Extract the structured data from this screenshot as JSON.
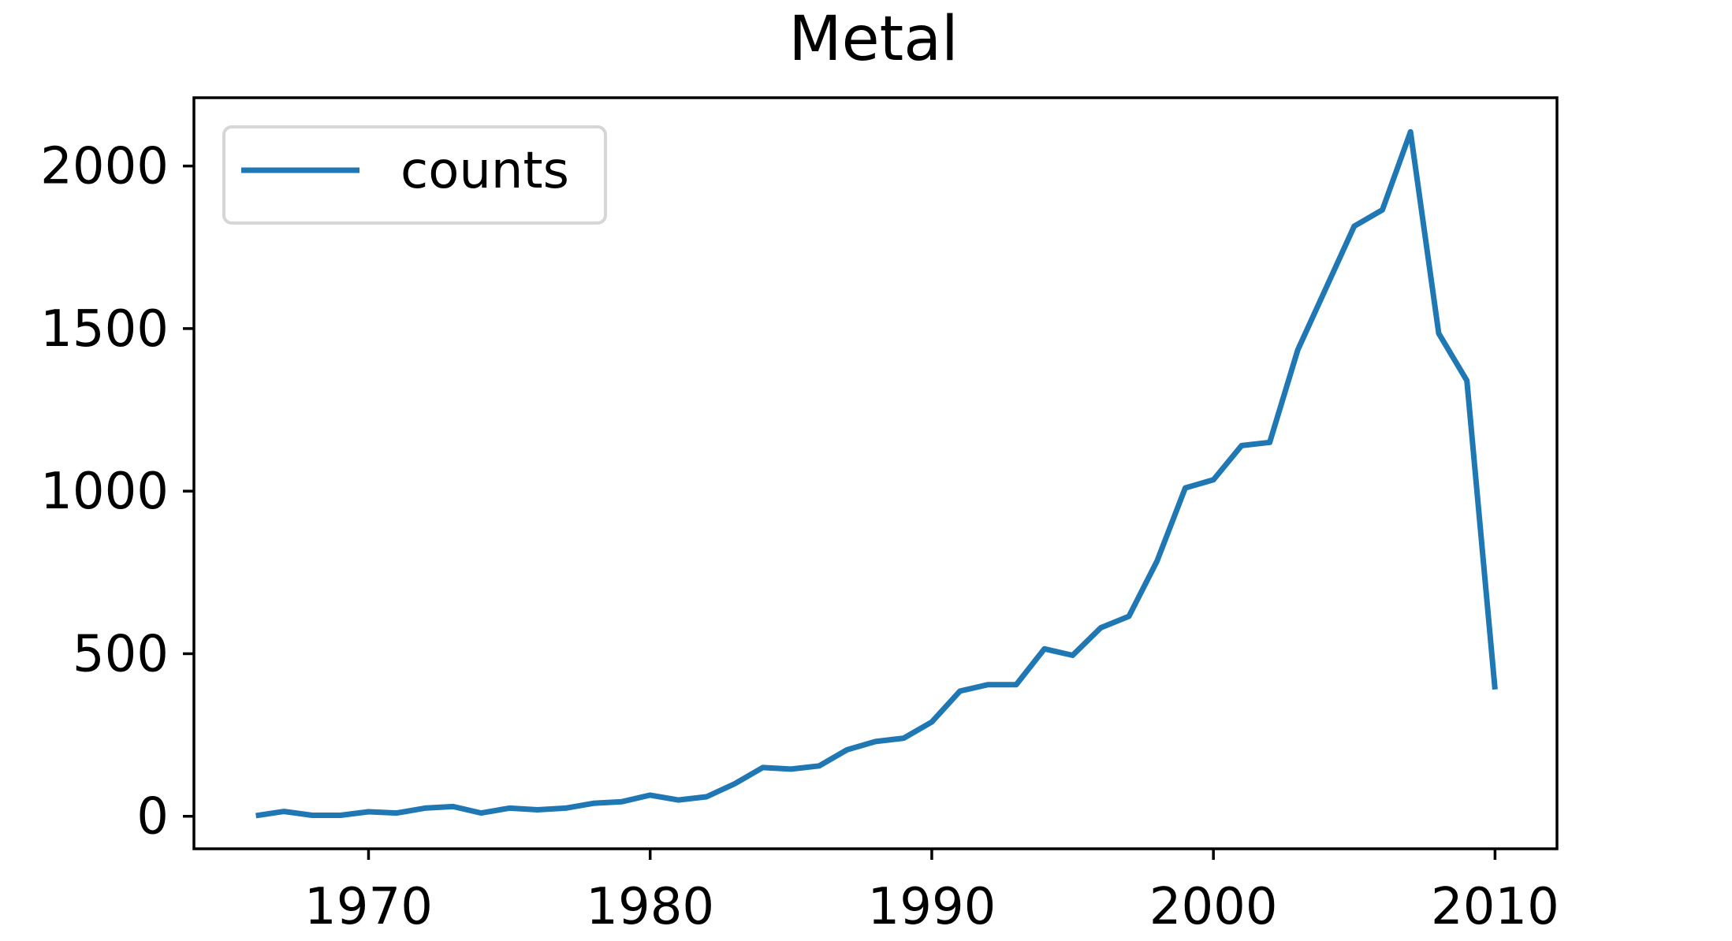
{
  "chart_data": {
    "type": "line",
    "title": "Metal",
    "xlabel": "",
    "ylabel": "",
    "xlim": [
      1963.8,
      2012.2
    ],
    "ylim": [
      -100,
      2210
    ],
    "x_ticks": [
      1970,
      1980,
      1990,
      2000,
      2010
    ],
    "y_ticks": [
      0,
      500,
      1000,
      1500,
      2000
    ],
    "grid": false,
    "legend_position": "top-left",
    "series": [
      {
        "name": "counts",
        "color": "#1f77b4",
        "x": [
          1966,
          1967,
          1968,
          1969,
          1970,
          1971,
          1972,
          1973,
          1974,
          1975,
          1976,
          1977,
          1978,
          1979,
          1980,
          1981,
          1982,
          1983,
          1984,
          1985,
          1986,
          1987,
          1988,
          1989,
          1990,
          1991,
          1992,
          1993,
          1994,
          1995,
          1996,
          1997,
          1998,
          1999,
          2000,
          2001,
          2002,
          2003,
          2004,
          2005,
          2006,
          2007,
          2008,
          2009,
          2010
        ],
        "values": [
          2,
          15,
          3,
          3,
          14,
          10,
          25,
          30,
          10,
          25,
          20,
          25,
          40,
          45,
          65,
          50,
          60,
          100,
          150,
          145,
          155,
          205,
          230,
          240,
          290,
          385,
          405,
          405,
          515,
          495,
          580,
          615,
          785,
          1010,
          1035,
          1140,
          1150,
          1435,
          1625,
          1815,
          1865,
          2105,
          1485,
          1340,
          390
        ]
      }
    ]
  }
}
